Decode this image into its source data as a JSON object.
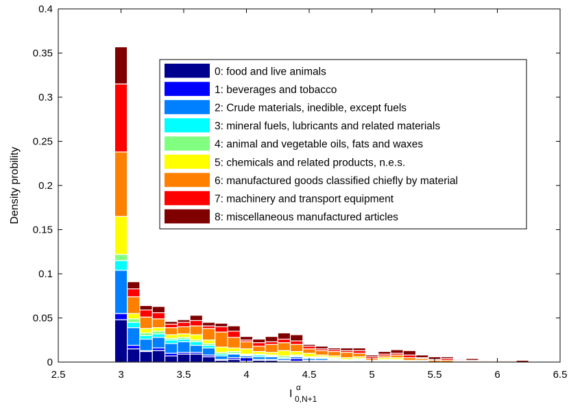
{
  "chart_data": {
    "type": "bar",
    "stacked": true,
    "ylabel": "Density probility",
    "xlabel": {
      "base": "I",
      "superscript": "α",
      "subscript": "0,N+1"
    },
    "xlim": [
      2.5,
      6.5
    ],
    "ylim": [
      0,
      0.4
    ],
    "bin_width": 0.1,
    "x_ticks": [
      "2.5",
      "3",
      "3.5",
      "4",
      "4.5",
      "5",
      "5.5",
      "6",
      "6.5"
    ],
    "y_ticks": [
      "0",
      "0.05",
      "0.1",
      "0.15",
      "0.2",
      "0.25",
      "0.3",
      "0.35",
      "0.4"
    ],
    "legend_position": "top-right",
    "grid": false,
    "x": [
      3.0,
      3.1,
      3.2,
      3.3,
      3.4,
      3.5,
      3.6,
      3.7,
      3.8,
      3.9,
      4.0,
      4.1,
      4.2,
      4.3,
      4.4,
      4.5,
      4.6,
      4.7,
      4.8,
      4.9,
      5.0,
      5.1,
      5.2,
      5.3,
      5.4,
      5.5,
      5.6,
      5.7,
      5.8,
      5.9,
      6.0,
      6.1,
      6.2
    ],
    "series": [
      {
        "name": "0: food and live animals",
        "color": "#00008F",
        "values": [
          0.048,
          0.015,
          0.012,
          0.013,
          0.007,
          0.009,
          0.009,
          0.006,
          0.002,
          0.003,
          0.001,
          0.002,
          0.002,
          0.001,
          0.001,
          0.001,
          0.001,
          0.001,
          0,
          0.001,
          0,
          0.001,
          0,
          0,
          0.001,
          0,
          0,
          0,
          0,
          0,
          0,
          0,
          0
        ]
      },
      {
        "name": "1: beverages and tobacco",
        "color": "#0000FF",
        "values": [
          0.007,
          0.004,
          0.001,
          0.003,
          0.003,
          0.002,
          0.002,
          0.002,
          0.001,
          0.002,
          0.004,
          0.001,
          0.001,
          0.001,
          0.003,
          0.001,
          0.001,
          0.001,
          0,
          0,
          0,
          0,
          0,
          0,
          0,
          0,
          0,
          0,
          0,
          0,
          0,
          0,
          0
        ]
      },
      {
        "name": "2: Crude materials, inedible, except fuels",
        "color": "#0080FF",
        "values": [
          0.049,
          0.02,
          0.013,
          0.012,
          0.011,
          0.012,
          0.008,
          0.008,
          0.004,
          0.004,
          0.002,
          0.003,
          0.003,
          0.002,
          0.002,
          0.002,
          0.002,
          0.001,
          0.001,
          0.001,
          0.001,
          0.001,
          0.001,
          0.001,
          0.001,
          0,
          0,
          0,
          0,
          0,
          0,
          0,
          0
        ]
      },
      {
        "name": "3: mineral fuels, lubricants and related materials",
        "color": "#00FFFF",
        "values": [
          0.011,
          0.006,
          0.004,
          0.004,
          0.004,
          0.003,
          0.004,
          0.003,
          0.002,
          0.001,
          0.001,
          0.002,
          0.001,
          0.001,
          0.001,
          0.001,
          0.001,
          0.001,
          0.001,
          0.001,
          0,
          0,
          0.001,
          0,
          0,
          0,
          0,
          0,
          0,
          0,
          0,
          0,
          0
        ]
      },
      {
        "name": "4: animal and vegetable oils, fats and waxes",
        "color": "#80FF80",
        "values": [
          0.007,
          0.004,
          0.003,
          0.003,
          0.002,
          0.002,
          0.002,
          0.002,
          0.002,
          0.002,
          0.001,
          0.001,
          0.001,
          0.002,
          0.001,
          0.001,
          0.001,
          0.001,
          0.001,
          0.001,
          0,
          0.001,
          0.001,
          0,
          0,
          0,
          0,
          0,
          0,
          0,
          0,
          0,
          0
        ]
      },
      {
        "name": "5: chemicals and related products, n.e.s.",
        "color": "#FFFF00",
        "values": [
          0.043,
          0.006,
          0.005,
          0.004,
          0.004,
          0.004,
          0.006,
          0.004,
          0.006,
          0.004,
          0.006,
          0.003,
          0.003,
          0.006,
          0.004,
          0.004,
          0.002,
          0.002,
          0.002,
          0.002,
          0.001,
          0.002,
          0.002,
          0.001,
          0,
          0,
          0,
          0,
          0,
          0,
          0,
          0,
          0
        ]
      },
      {
        "name": "6: manufactured goods classified chiefly by material",
        "color": "#FF8000",
        "values": [
          0.073,
          0.019,
          0.013,
          0.01,
          0.008,
          0.008,
          0.01,
          0.013,
          0.017,
          0.012,
          0.008,
          0.006,
          0.009,
          0.009,
          0.008,
          0.005,
          0.005,
          0.005,
          0.006,
          0.004,
          0.002,
          0.002,
          0.003,
          0.003,
          0.002,
          0.002,
          0.002,
          0.001,
          0.001,
          0.001,
          0.001,
          0.001,
          0
        ]
      },
      {
        "name": "7: machinery and transport equipment",
        "color": "#FF0000",
        "values": [
          0.077,
          0.009,
          0.008,
          0.007,
          0.004,
          0.005,
          0.006,
          0.003,
          0.006,
          0.007,
          0.002,
          0.004,
          0.003,
          0.004,
          0.004,
          0.003,
          0.002,
          0.002,
          0.002,
          0.003,
          0.002,
          0.002,
          0.002,
          0.003,
          0.001,
          0.001,
          0.002,
          0.001,
          0.001,
          0,
          0,
          0,
          0
        ]
      },
      {
        "name": "8: miscellaneous manufactured articles",
        "color": "#800000",
        "values": [
          0.042,
          0.008,
          0.005,
          0.007,
          0.003,
          0.003,
          0.006,
          0.004,
          0.004,
          0.006,
          0.004,
          0.004,
          0.006,
          0.007,
          0.007,
          0.002,
          0.003,
          0.002,
          0.003,
          0.003,
          0.002,
          0.003,
          0.004,
          0.005,
          0.003,
          0.003,
          0.002,
          0.001,
          0.002,
          0.001,
          0.001,
          0.001,
          0.002
        ]
      }
    ]
  }
}
